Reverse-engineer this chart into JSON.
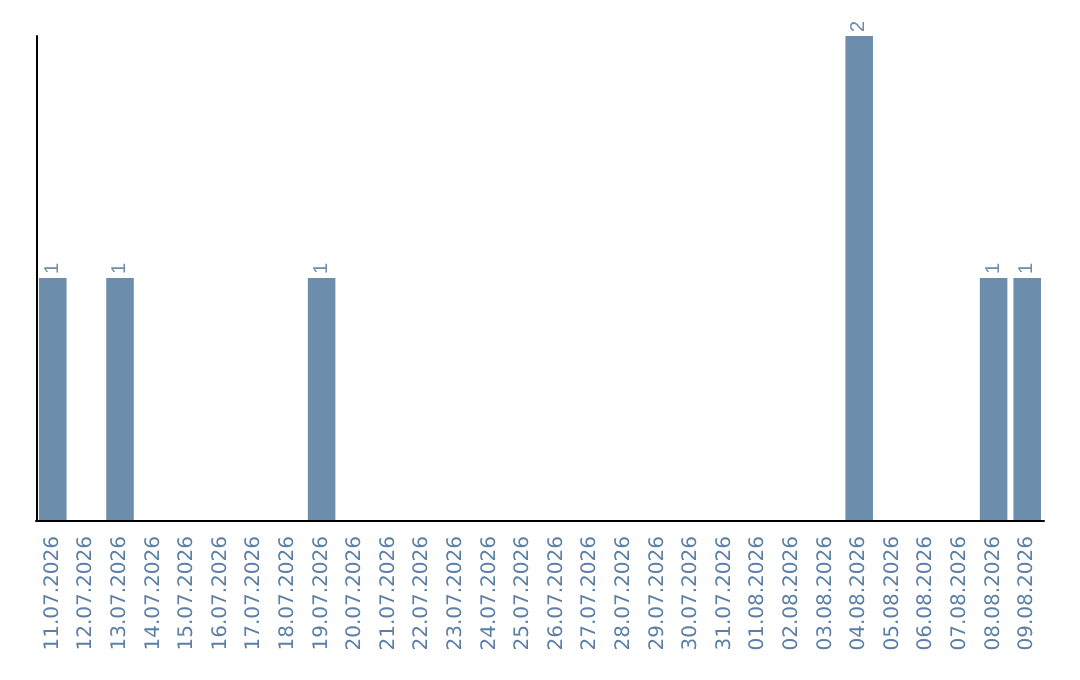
{
  "chart_data": {
    "type": "bar",
    "categories": [
      "11.07.2026",
      "12.07.2026",
      "13.07.2026",
      "14.07.2026",
      "15.07.2026",
      "16.07.2026",
      "17.07.2026",
      "18.07.2026",
      "19.07.2026",
      "20.07.2026",
      "21.07.2026",
      "22.07.2026",
      "23.07.2026",
      "24.07.2026",
      "25.07.2026",
      "26.07.2026",
      "27.07.2026",
      "28.07.2026",
      "29.07.2026",
      "30.07.2026",
      "31.07.2026",
      "01.08.2026",
      "02.08.2026",
      "03.08.2026",
      "04.08.2026",
      "05.08.2026",
      "06.08.2026",
      "07.08.2026",
      "08.08.2026",
      "09.08.2026"
    ],
    "values": [
      1,
      0,
      1,
      0,
      0,
      0,
      0,
      0,
      1,
      0,
      0,
      0,
      0,
      0,
      0,
      0,
      0,
      0,
      0,
      0,
      0,
      0,
      0,
      0,
      2,
      0,
      0,
      0,
      1,
      1
    ],
    "value_labels": [
      "1",
      null,
      "1",
      null,
      null,
      null,
      null,
      null,
      "1",
      null,
      null,
      null,
      null,
      null,
      null,
      null,
      null,
      null,
      null,
      null,
      null,
      null,
      null,
      null,
      "2",
      null,
      null,
      null,
      "1",
      "1"
    ],
    "color": "#6d8dad"
  }
}
